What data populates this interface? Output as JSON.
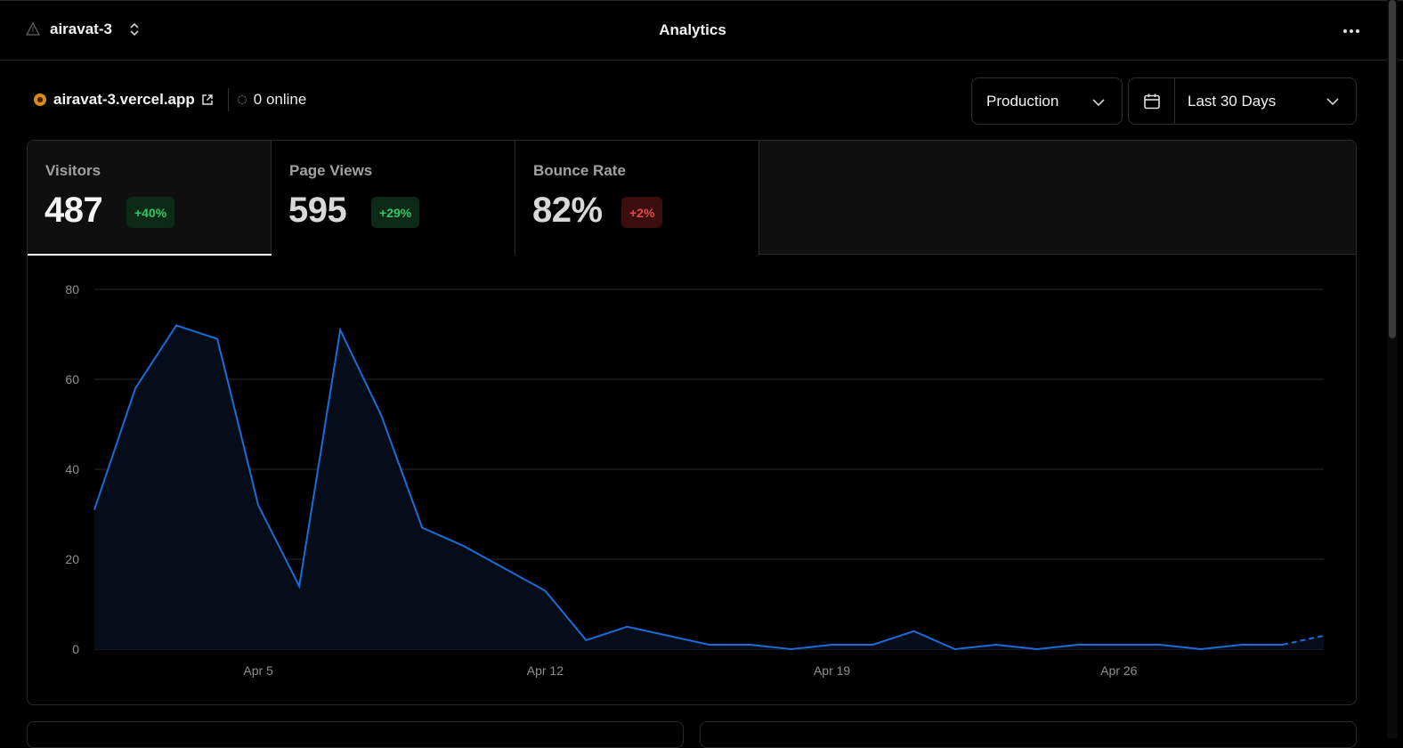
{
  "header": {
    "project_name": "airavat-3",
    "page_title": "Analytics"
  },
  "site": {
    "domain": "airavat-3.vercel.app",
    "online": "0 online"
  },
  "filters": {
    "environment": "Production",
    "range": "Last 30 Days"
  },
  "metrics": [
    {
      "label": "Visitors",
      "value": "487",
      "change": "+40%",
      "trend": "up"
    },
    {
      "label": "Page Views",
      "value": "595",
      "change": "+29%",
      "trend": "up"
    },
    {
      "label": "Bounce Rate",
      "value": "82%",
      "change": "+2%",
      "trend": "down"
    }
  ],
  "colors": {
    "line": "#1a6cd9",
    "area": "#050d1a",
    "grid": "#2a2a2a",
    "positive": "#35c56a",
    "negative": "#e5484d"
  },
  "chart_data": {
    "type": "area",
    "x": [
      1,
      2,
      3,
      4,
      5,
      6,
      7,
      8,
      9,
      10,
      11,
      12,
      13,
      14,
      15,
      16,
      17,
      18,
      19,
      20,
      21,
      22,
      23,
      24,
      25,
      26,
      27,
      28,
      29,
      30,
      31
    ],
    "values": [
      31,
      58,
      72,
      69,
      32,
      14,
      71,
      52,
      27,
      23,
      18,
      13,
      2,
      5,
      3,
      1,
      1,
      0,
      1,
      1,
      4,
      0,
      1,
      0,
      1,
      1,
      1,
      0,
      1,
      1,
      3
    ],
    "projected_from_index": 29,
    "xticks": [
      {
        "x": 5,
        "label": "Apr 5"
      },
      {
        "x": 12,
        "label": "Apr 12"
      },
      {
        "x": 19,
        "label": "Apr 19"
      },
      {
        "x": 26,
        "label": "Apr 26"
      }
    ],
    "yticks": [
      0,
      20,
      40,
      60,
      80
    ],
    "ylim": [
      0,
      80
    ],
    "grid": true
  }
}
